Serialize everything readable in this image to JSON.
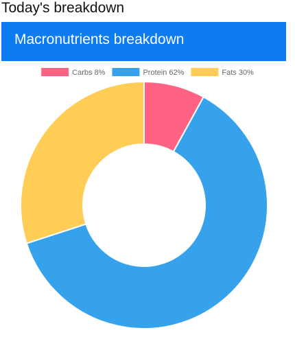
{
  "page": {
    "heading": "Today's breakdown"
  },
  "card": {
    "title": "Macronutrients breakdown"
  },
  "chart_data": {
    "type": "pie",
    "variant": "doughnut",
    "title": "",
    "legend_position": "top",
    "categories": [
      "Carbs 8%",
      "Protein 62%",
      "Fats 30%"
    ],
    "values": [
      8,
      62,
      30
    ],
    "colors": [
      "#ff6384",
      "#36a2eb",
      "#ffcd56"
    ],
    "start_angle_deg": 0,
    "direction": "clockwise"
  },
  "colors": {
    "header_background": "#0d7cf2",
    "header_text": "#ffffff",
    "legend_text": "#666666"
  }
}
